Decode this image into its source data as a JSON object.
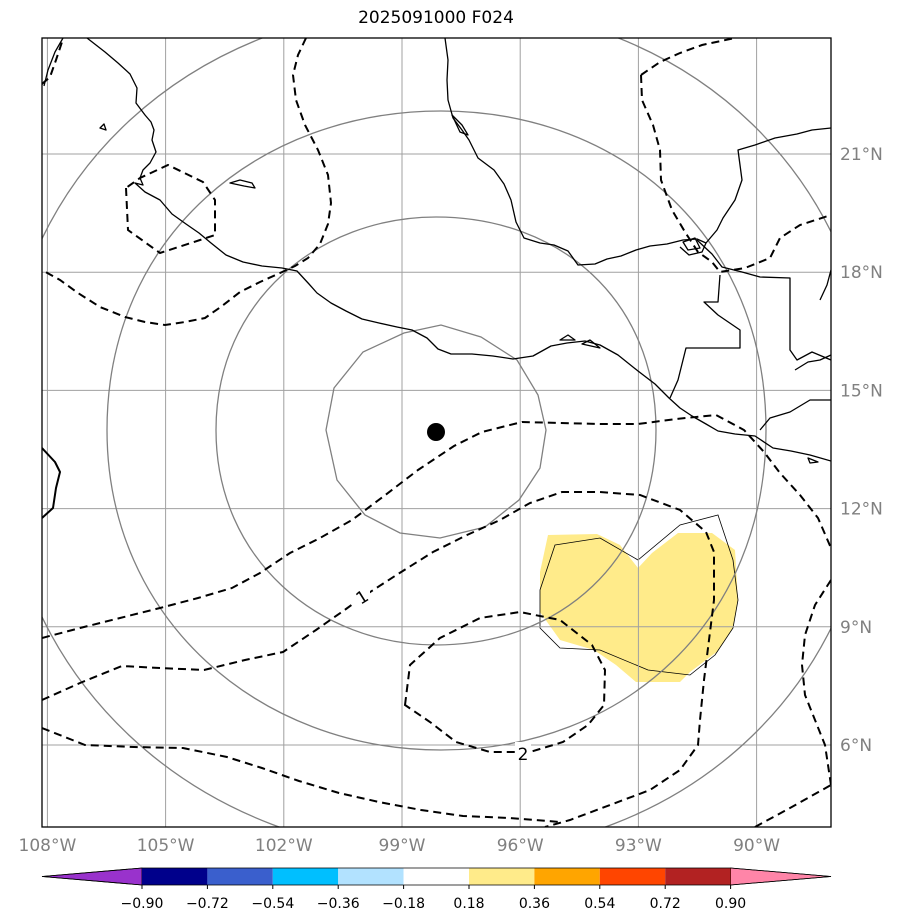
{
  "map": {
    "title": "2025091000 F024",
    "lon_ticks": [
      {
        "value": -108,
        "label": "108°W"
      },
      {
        "value": -105,
        "label": "105°W"
      },
      {
        "value": -102,
        "label": "102°W"
      },
      {
        "value": -99,
        "label": "99°W"
      },
      {
        "value": -96,
        "label": "96°W"
      },
      {
        "value": -93,
        "label": "93°W"
      },
      {
        "value": -90,
        "label": "90°W"
      }
    ],
    "lat_ticks": [
      {
        "value": 6,
        "label": "6°N"
      },
      {
        "value": 9,
        "label": "9°N"
      },
      {
        "value": 12,
        "label": "12°N"
      },
      {
        "value": 15,
        "label": "15°N"
      },
      {
        "value": 18,
        "label": "18°N"
      },
      {
        "value": 21,
        "label": "21°N"
      }
    ],
    "contour_labels": [
      "1",
      "2"
    ],
    "center_marker": {
      "lon": -98.2,
      "lat": 13.9
    },
    "colorbar": {
      "colors": [
        "#9932CC",
        "#00008B",
        "#3A5FCD",
        "#00BFFF",
        "#B2E2FF",
        "#FFFFFF",
        "#FFEB8A",
        "#FFA500",
        "#FF4500",
        "#B22222",
        "#FF85A8"
      ],
      "tick_labels": [
        "−0.90",
        "−0.72",
        "−0.54",
        "−0.36",
        "−0.18",
        "0.18",
        "0.36",
        "0.54",
        "0.72",
        "0.90"
      ]
    },
    "colors": {
      "grid": "#a0a0a0",
      "rings": "#808080",
      "coast": "#000000",
      "shade": "#FFEB8A"
    }
  }
}
